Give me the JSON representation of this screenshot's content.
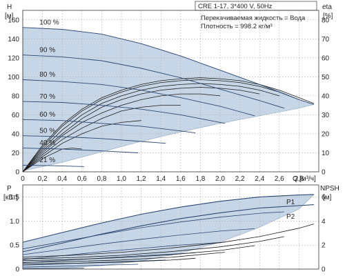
{
  "chart_data": [
    {
      "type": "line",
      "panel": "top",
      "title": "CRE 1-17, 3*400 V, 50Hz",
      "info_lines": [
        "Перекачиваемая жидкость = Вода",
        "Плотность = 998.2 кг/м³"
      ],
      "ylabel": "H",
      "yunit": "[м]",
      "ylabel_right": "eta",
      "yunit_right": "[%]",
      "xlabel": "Q",
      "xunit": "[м³/ч]",
      "xlim": [
        0,
        3.0
      ],
      "ylim": [
        0,
        170
      ],
      "ylim_right": [
        0,
        85
      ],
      "xticks": [
        0,
        0.2,
        0.4,
        0.6,
        0.8,
        1.0,
        1.2,
        1.4,
        1.6,
        1.8,
        2.0,
        2.2,
        2.4,
        2.6,
        2.8
      ],
      "xtick_labels": [
        "0",
        "0,2",
        "0,4",
        "0,6",
        "0,8",
        "1,0",
        "1,2",
        "1,4",
        "1,6",
        "1,8",
        "2,0",
        "2,2",
        "2,4",
        "2,6",
        "2,8"
      ],
      "yticks": [
        0,
        20,
        40,
        60,
        80,
        100,
        120,
        140,
        160
      ],
      "ytick_labels": [
        "0",
        "20",
        "40",
        "60",
        "80",
        "100",
        "120",
        "140",
        "160"
      ],
      "yticks_right": [
        0,
        10,
        20,
        30,
        40,
        50,
        60,
        70,
        80
      ],
      "ytick_labels_right": [
        "0",
        "10",
        "20",
        "30",
        "40",
        "50",
        "60",
        "70",
        "80"
      ],
      "grid": true,
      "operating_area": [
        [
          0,
          152
        ],
        [
          0.4,
          150
        ],
        [
          0.8,
          145
        ],
        [
          1.2,
          135
        ],
        [
          1.6,
          122
        ],
        [
          2.0,
          107
        ],
        [
          2.4,
          92
        ],
        [
          2.6,
          85
        ],
        [
          2.8,
          76
        ],
        [
          2.95,
          71
        ],
        [
          2.8,
          67
        ],
        [
          2.4,
          59
        ],
        [
          2.0,
          51
        ],
        [
          1.6,
          42
        ],
        [
          1.2,
          32
        ],
        [
          0.8,
          21
        ],
        [
          0.4,
          10
        ],
        [
          0.05,
          2
        ],
        [
          0,
          2
        ]
      ],
      "speed_curves": [
        {
          "name": "100 %",
          "x": [
            0,
            0.4,
            0.8,
            1.2,
            1.6,
            2.0,
            2.4,
            2.8,
            2.95
          ],
          "y": [
            152,
            150,
            145,
            135,
            122,
            107,
            92,
            76,
            71
          ]
        },
        {
          "name": "90 %",
          "x": [
            0,
            0.4,
            0.8,
            1.2,
            1.6,
            2.0,
            2.4,
            2.65
          ],
          "y": [
            123,
            121,
            117,
            109,
            99,
            87,
            75,
            67
          ]
        },
        {
          "name": "80 %",
          "x": [
            0,
            0.4,
            0.8,
            1.2,
            1.6,
            2.0,
            2.35
          ],
          "y": [
            97,
            95,
            92,
            86,
            78,
            69,
            59
          ]
        },
        {
          "name": "70 %",
          "x": [
            0,
            0.4,
            0.8,
            1.2,
            1.6,
            2.05
          ],
          "y": [
            74,
            73,
            70,
            66,
            60,
            51
          ]
        },
        {
          "name": "60 %",
          "x": [
            0,
            0.4,
            0.8,
            1.2,
            1.6,
            1.75
          ],
          "y": [
            55,
            54,
            51,
            48,
            43,
            41
          ]
        },
        {
          "name": "50 %",
          "x": [
            0,
            0.4,
            0.8,
            1.2,
            1.45
          ],
          "y": [
            38,
            37,
            35,
            32,
            30
          ]
        },
        {
          "name": "40 %",
          "x": [
            0,
            0.4,
            0.8,
            1.17
          ],
          "y": [
            25,
            24,
            22,
            20
          ]
        },
        {
          "name": "21 %",
          "x": [
            0,
            0.3,
            0.62
          ],
          "y": [
            7,
            6.5,
            5.5
          ]
        }
      ],
      "efficiency_curves": [
        {
          "x": [
            0,
            0.2,
            0.4,
            0.6,
            0.8,
            1.0,
            1.2,
            1.4,
            1.6,
            1.8,
            2.0,
            2.2,
            2.4,
            2.6,
            2.8,
            2.95
          ],
          "y": [
            0,
            14,
            25,
            33,
            39,
            43,
            46,
            48,
            49,
            49.5,
            49,
            48,
            46,
            43,
            39,
            36
          ]
        },
        {
          "x": [
            0,
            0.2,
            0.4,
            0.6,
            0.8,
            1.0,
            1.2,
            1.4,
            1.6,
            1.8,
            2.0,
            2.2,
            2.4,
            2.6,
            2.8
          ],
          "y": [
            0,
            13,
            24,
            32,
            38,
            42,
            45,
            47,
            48,
            48.5,
            48,
            47,
            45,
            42,
            38
          ]
        },
        {
          "x": [
            0,
            0.2,
            0.4,
            0.6,
            0.8,
            1.0,
            1.2,
            1.4,
            1.6,
            1.8,
            2.0,
            2.2,
            2.4,
            2.6
          ],
          "y": [
            0,
            12,
            22,
            30,
            36,
            40,
            43,
            45,
            46,
            46.5,
            46,
            45,
            43,
            40
          ]
        },
        {
          "x": [
            0,
            0.2,
            0.4,
            0.6,
            0.8,
            1.0,
            1.2,
            1.4,
            1.6,
            1.8,
            2.0,
            2.2,
            2.4
          ],
          "y": [
            0,
            11,
            20,
            28,
            34,
            38,
            41,
            43,
            44,
            44.5,
            44,
            43,
            41
          ]
        },
        {
          "x": [
            0,
            0.2,
            0.4,
            0.6,
            0.8,
            1.0,
            1.2,
            1.4,
            1.6,
            1.8,
            2.0
          ],
          "y": [
            0,
            10,
            19,
            26,
            31,
            35,
            38,
            40,
            41,
            41,
            40
          ]
        },
        {
          "x": [
            0,
            0.2,
            0.4,
            0.6,
            0.8,
            1.0,
            1.2,
            1.4,
            1.6
          ],
          "y": [
            0,
            9,
            17,
            23,
            28,
            32,
            34,
            35,
            35
          ]
        },
        {
          "x": [
            0,
            0.2,
            0.4,
            0.6,
            0.8,
            1.0,
            1.2
          ],
          "y": [
            0,
            8,
            15,
            20,
            24,
            26,
            27
          ]
        },
        {
          "x": [
            0,
            0.2,
            0.4,
            0.5,
            0.6
          ],
          "y": [
            0,
            7,
            12,
            12.5,
            12
          ]
        }
      ]
    },
    {
      "type": "line",
      "panel": "bottom",
      "ylabel": "P",
      "yunit": "[кВт]",
      "ylabel_right": "NPSH",
      "yunit_right": "[м]",
      "xlim": [
        0,
        3.0
      ],
      "ylim": [
        0,
        1.75
      ],
      "ylim_right": [
        0,
        7
      ],
      "yticks": [
        0,
        0.5,
        1.0,
        1.5
      ],
      "ytick_labels": [
        "0",
        "0.5",
        "1.0",
        "1.5"
      ],
      "yticks_right": [
        0,
        2,
        4,
        6
      ],
      "ytick_labels_right": [
        "0",
        "2",
        "4",
        "6"
      ],
      "grid": true,
      "operating_area": [
        [
          0,
          0.56
        ],
        [
          0.4,
          0.76
        ],
        [
          0.8,
          0.96
        ],
        [
          1.2,
          1.14
        ],
        [
          1.6,
          1.29
        ],
        [
          2.0,
          1.41
        ],
        [
          2.4,
          1.5
        ],
        [
          2.8,
          1.54
        ],
        [
          2.95,
          1.55
        ],
        [
          2.8,
          1.25
        ],
        [
          2.4,
          0.87
        ],
        [
          2.0,
          0.56
        ],
        [
          1.6,
          0.33
        ],
        [
          1.2,
          0.17
        ],
        [
          0.8,
          0.07
        ],
        [
          0.4,
          0.02
        ],
        [
          0,
          0.01
        ]
      ],
      "series": [
        {
          "name": "P1",
          "x": [
            0,
            0.4,
            0.8,
            1.2,
            1.6,
            2.0,
            2.4,
            2.8,
            2.95
          ],
          "y": [
            0.56,
            0.76,
            0.96,
            1.14,
            1.29,
            1.41,
            1.5,
            1.54,
            1.55
          ]
        },
        {
          "name": "P2",
          "x": [
            0,
            0.4,
            0.8,
            1.2,
            1.6,
            2.0,
            2.4,
            2.8,
            2.95
          ],
          "y": [
            0.36,
            0.54,
            0.73,
            0.9,
            1.05,
            1.17,
            1.27,
            1.32,
            1.34
          ]
        }
      ],
      "power_curves": [
        {
          "x": [
            0,
            0.4,
            0.8,
            1.2,
            1.6,
            2.0,
            2.4,
            2.65
          ],
          "y": [
            0.42,
            0.57,
            0.72,
            0.86,
            0.98,
            1.08,
            1.16,
            1.19
          ]
        },
        {
          "x": [
            0,
            0.4,
            0.8,
            1.2,
            1.6,
            2.0,
            2.35
          ],
          "y": [
            0.3,
            0.41,
            0.52,
            0.62,
            0.71,
            0.79,
            0.84
          ]
        },
        {
          "x": [
            0,
            0.4,
            0.8,
            1.2,
            1.6,
            2.05
          ],
          "y": [
            0.2,
            0.28,
            0.36,
            0.43,
            0.5,
            0.56
          ]
        },
        {
          "x": [
            0,
            0.4,
            0.8,
            1.2,
            1.6,
            1.75
          ],
          "y": [
            0.13,
            0.18,
            0.23,
            0.28,
            0.32,
            0.34
          ]
        },
        {
          "x": [
            0,
            0.4,
            0.8,
            1.2,
            1.45
          ],
          "y": [
            0.08,
            0.11,
            0.14,
            0.17,
            0.19
          ]
        },
        {
          "x": [
            0,
            0.4,
            0.8,
            1.17
          ],
          "y": [
            0.04,
            0.06,
            0.08,
            0.1
          ]
        },
        {
          "x": [
            0,
            0.3,
            0.62
          ],
          "y": [
            0.01,
            0.015,
            0.02
          ]
        }
      ],
      "npsh_curves": [
        {
          "x": [
            0,
            0.5,
            1.0,
            1.5,
            2.0,
            2.4,
            2.8,
            2.95
          ],
          "y": [
            1.0,
            1.15,
            1.4,
            1.75,
            2.2,
            2.7,
            3.4,
            3.75
          ]
        },
        {
          "x": [
            0,
            0.5,
            1.0,
            1.5,
            2.0,
            2.4,
            2.65
          ],
          "y": [
            0.85,
            0.95,
            1.15,
            1.45,
            1.85,
            2.3,
            2.7
          ]
        },
        {
          "x": [
            0,
            0.5,
            1.0,
            1.5,
            2.0,
            2.35
          ],
          "y": [
            0.7,
            0.8,
            0.95,
            1.2,
            1.55,
            1.95
          ]
        },
        {
          "x": [
            0,
            0.5,
            1.0,
            1.5,
            2.05
          ],
          "y": [
            0.55,
            0.63,
            0.76,
            0.98,
            1.4
          ]
        },
        {
          "x": [
            0,
            0.5,
            1.0,
            1.5,
            1.75
          ],
          "y": [
            0.42,
            0.48,
            0.58,
            0.75,
            0.9
          ]
        }
      ]
    }
  ]
}
